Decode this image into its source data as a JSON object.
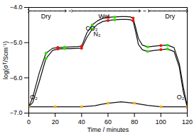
{
  "chart_data": {
    "type": "line",
    "xlabel": "Time / minutes",
    "ylabel": "log(σᵀ/Scm⁻¹)",
    "xlim": [
      0,
      120
    ],
    "ylim": [
      -7,
      -4
    ],
    "xticks": [
      0,
      20,
      40,
      60,
      80,
      100,
      120
    ],
    "yticks": [
      -7,
      -6,
      -5,
      -4
    ],
    "series": [
      {
        "type": "line",
        "color": "#111111",
        "x": [
          0,
          10,
          20,
          30,
          40,
          50,
          55,
          60,
          65,
          70,
          75,
          80,
          90,
          100,
          110,
          120
        ],
        "values": [
          -6.82,
          -6.82,
          -6.82,
          -6.82,
          -6.82,
          -6.79,
          -6.75,
          -6.72,
          -6.7,
          -6.68,
          -6.7,
          -6.72,
          -6.78,
          -6.82,
          -6.82,
          -6.82
        ]
      },
      {
        "type": "line",
        "color": "#111111",
        "x": [
          0,
          3,
          8,
          13,
          18,
          22,
          27,
          32,
          37,
          40,
          44,
          48,
          52,
          56,
          60,
          65,
          70,
          74,
          77,
          79,
          81,
          83,
          86,
          90,
          95,
          100,
          105,
          110,
          114,
          117,
          120
        ],
        "values": [
          -6.82,
          -6.7,
          -6.1,
          -5.45,
          -5.22,
          -5.18,
          -5.17,
          -5.17,
          -5.16,
          -5.16,
          -4.85,
          -4.62,
          -4.48,
          -4.4,
          -4.37,
          -4.35,
          -4.34,
          -4.34,
          -4.35,
          -4.38,
          -4.7,
          -5.05,
          -5.2,
          -5.25,
          -5.22,
          -5.2,
          -5.18,
          -5.25,
          -5.7,
          -6.4,
          -6.82
        ]
      },
      {
        "type": "line",
        "color": "#111111",
        "x": [
          0,
          3,
          8,
          13,
          18,
          22,
          27,
          32,
          37,
          40,
          44,
          48,
          52,
          56,
          60,
          65,
          70,
          74,
          77,
          79,
          81,
          83,
          86,
          90,
          95,
          100,
          105,
          110,
          114,
          117,
          120
        ],
        "values": [
          -6.82,
          -6.55,
          -5.85,
          -5.3,
          -5.16,
          -5.14,
          -5.13,
          -5.12,
          -5.11,
          -5.1,
          -4.72,
          -4.5,
          -4.38,
          -4.31,
          -4.28,
          -4.27,
          -4.26,
          -4.26,
          -4.27,
          -4.3,
          -4.58,
          -4.88,
          -5.07,
          -5.12,
          -5.1,
          -5.08,
          -5.07,
          -5.14,
          -5.6,
          -6.25,
          -6.82
        ]
      },
      {
        "type": "scatter",
        "color": "#33dd00",
        "x": [
          13,
          27,
          48,
          65,
          90,
          105
        ],
        "values": [
          -5.45,
          -5.17,
          -4.62,
          -4.35,
          -5.25,
          -5.18
        ]
      },
      {
        "type": "scatter",
        "color": "#33dd00",
        "x": [
          13,
          27,
          48,
          65,
          90,
          105
        ],
        "values": [
          -5.3,
          -5.13,
          -4.5,
          -4.27,
          -5.12,
          -5.07
        ]
      },
      {
        "type": "scatter",
        "color": "#ee1100",
        "x": [
          22,
          40,
          60,
          79,
          100,
          120
        ],
        "values": [
          -5.18,
          -5.16,
          -4.37,
          -4.38,
          -5.2,
          -6.82
        ]
      },
      {
        "type": "scatter",
        "color": "#ee1100",
        "x": [
          22,
          40,
          60,
          79,
          100,
          120
        ],
        "values": [
          -5.14,
          -5.1,
          -4.28,
          -4.3,
          -5.08,
          -6.82
        ]
      },
      {
        "type": "scatter",
        "color": "#ffaa00",
        "x": [
          0,
          20,
          40,
          60,
          80,
          100,
          120
        ],
        "values": [
          -6.82,
          -6.82,
          -6.82,
          -6.72,
          -6.72,
          -6.82,
          -6.82
        ]
      }
    ],
    "arrows": [
      {
        "x": [
          0,
          120
        ],
        "y": -4.1,
        "color": "#111111",
        "line_style": "dashed"
      },
      {
        "x": [
          0,
          28
        ],
        "y": -4.1,
        "color": "black",
        "line_style": "solid"
      },
      {
        "x": [
          33,
          84
        ],
        "y": -4.1,
        "color": "black",
        "line_style": "solid"
      },
      {
        "x": [
          91,
          120
        ],
        "y": -4.1,
        "color": "black",
        "line_style": "solid"
      }
    ],
    "region_labels": [
      {
        "text": "Dry",
        "x": 13,
        "y": -4.18
      },
      {
        "text": "Wet",
        "x": 57,
        "y": -4.18
      },
      {
        "text": "Dry",
        "x": 107,
        "y": -4.18
      }
    ],
    "annotations": [
      {
        "text": "CO₂",
        "x": 43,
        "y": -4.65
      },
      {
        "text": "N₂",
        "x": 49,
        "y": -4.82
      },
      {
        "text": "O₂",
        "x": 1,
        "y": -6.6
      },
      {
        "text": "O₂",
        "x": 112,
        "y": -6.6
      }
    ]
  }
}
